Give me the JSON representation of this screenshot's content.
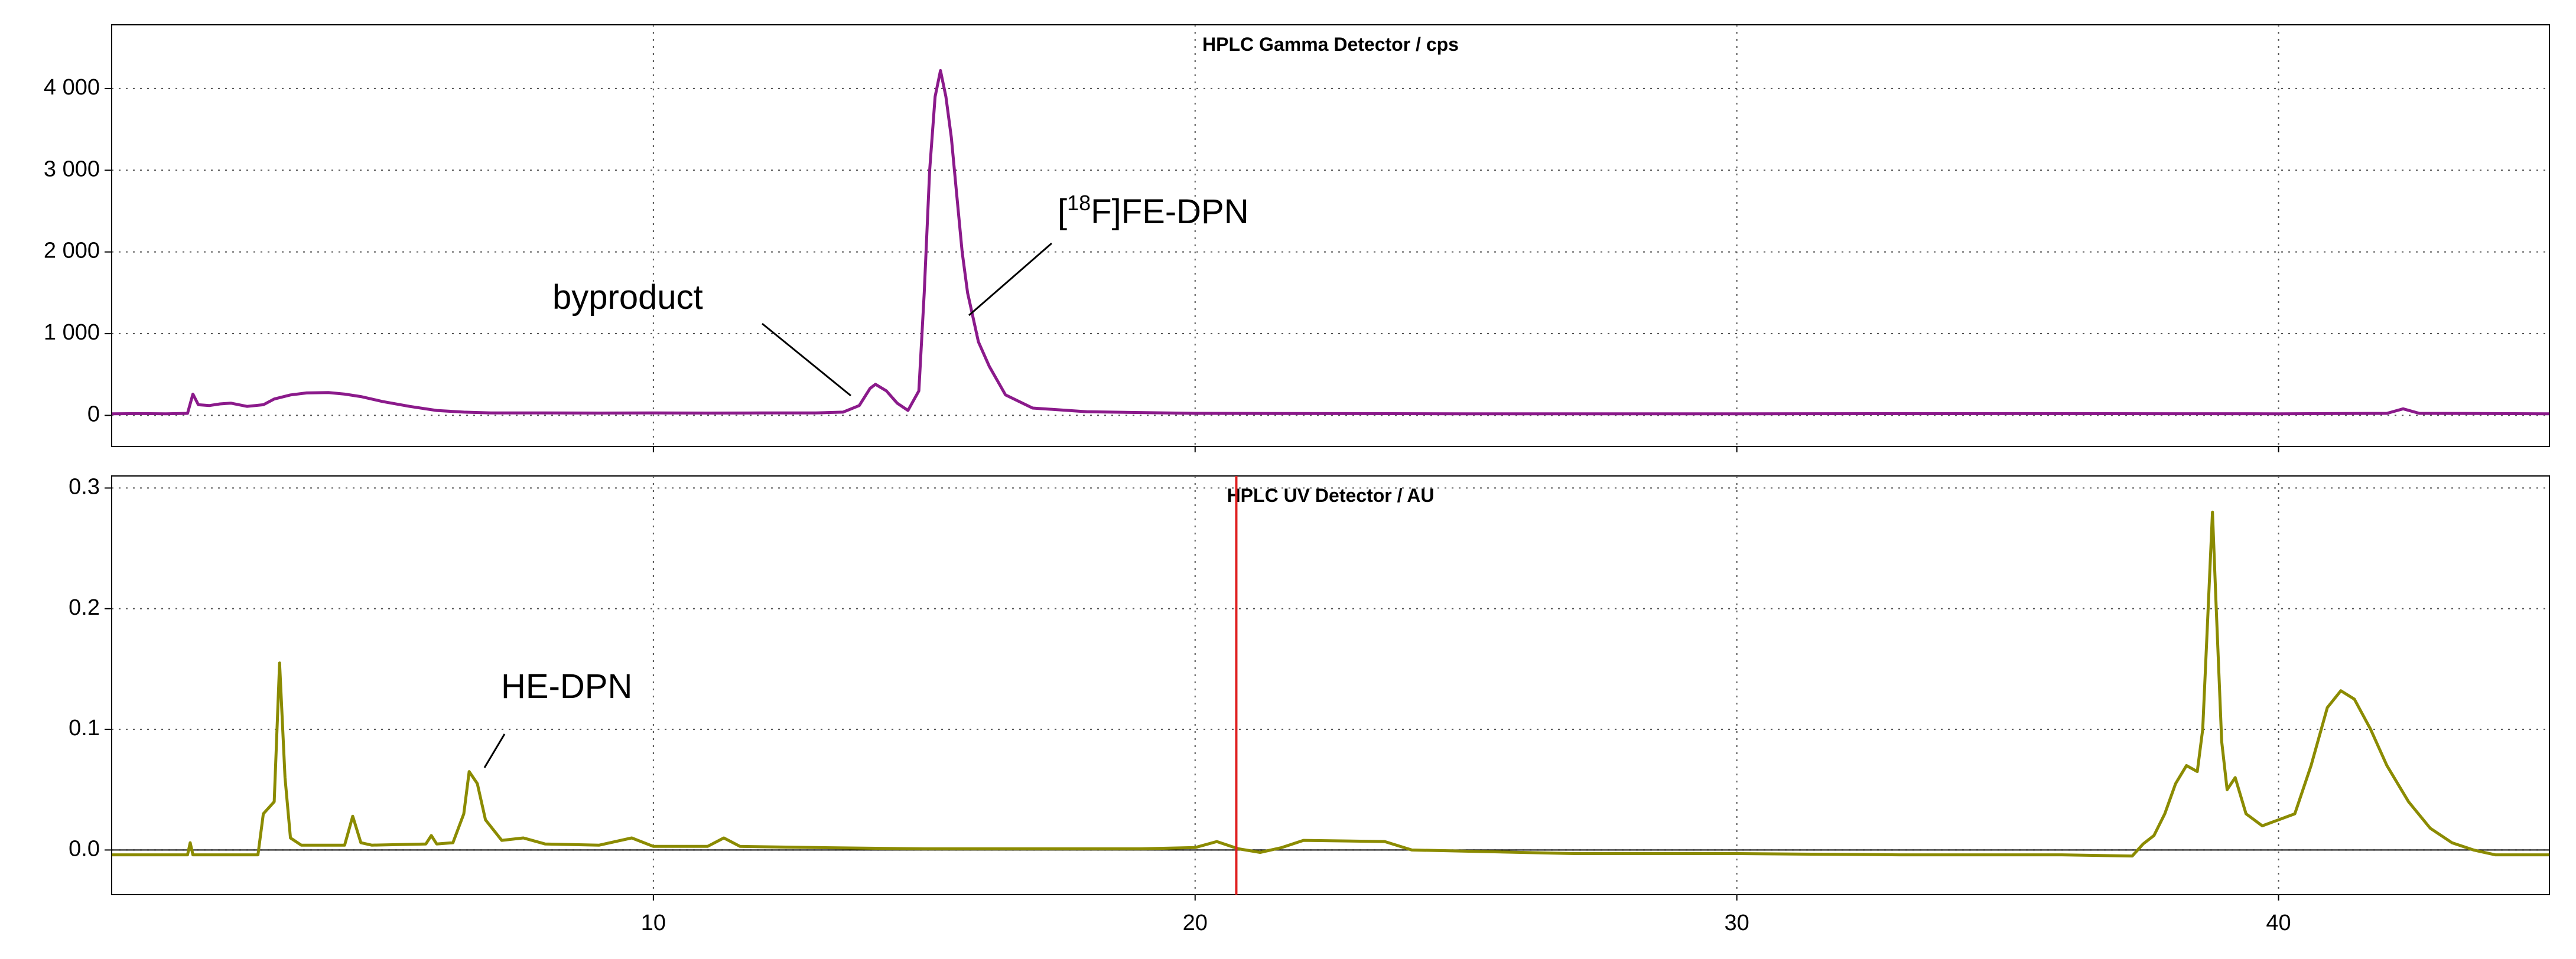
{
  "chart_data": [
    {
      "type": "line",
      "title": "HPLC Gamma Detector / cps",
      "color": "#8b1a8b",
      "xlim": [
        0,
        45
      ],
      "xticks": [
        10,
        20,
        30,
        40
      ],
      "xtick_labels": false,
      "ylim": [
        -380,
        4780
      ],
      "yticks": [
        {
          "value": 0,
          "label": "0"
        },
        {
          "value": 1000,
          "label": "1 000"
        },
        {
          "value": 2000,
          "label": "2 000"
        },
        {
          "value": 3000,
          "label": "3 000"
        },
        {
          "value": 4000,
          "label": "4 000"
        }
      ],
      "grid": true,
      "zero_line": false,
      "x": [
        0,
        0.5,
        1,
        1.4,
        1.5,
        1.6,
        1.8,
        2.0,
        2.2,
        2.5,
        2.8,
        3.0,
        3.3,
        3.6,
        4.0,
        4.3,
        4.6,
        5.0,
        5.5,
        6.0,
        6.5,
        7,
        8,
        9,
        10,
        11,
        12,
        13,
        13.5,
        13.8,
        14.0,
        14.1,
        14.3,
        14.5,
        14.7,
        14.9,
        15.0,
        15.1,
        15.2,
        15.3,
        15.4,
        15.5,
        15.6,
        15.7,
        15.8,
        15.9,
        16.0,
        16.2,
        16.5,
        17,
        18,
        20,
        25,
        30,
        35,
        40,
        42,
        42.3,
        42.6,
        45
      ],
      "values": [
        20,
        22,
        20,
        25,
        260,
        130,
        120,
        140,
        150,
        110,
        130,
        200,
        250,
        275,
        280,
        260,
        230,
        170,
        110,
        60,
        40,
        30,
        30,
        28,
        30,
        28,
        30,
        30,
        40,
        120,
        330,
        380,
        300,
        150,
        60,
        300,
        1500,
        3000,
        3900,
        4220,
        3900,
        3400,
        2700,
        2000,
        1500,
        1200,
        900,
        600,
        250,
        90,
        45,
        25,
        20,
        20,
        22,
        20,
        25,
        80,
        25,
        20
      ],
      "annotations": [
        {
          "text": "byproduct"
        },
        {
          "prefix": "[",
          "sup": "18",
          "text": "F]FE-DPN"
        }
      ]
    },
    {
      "type": "line",
      "title": "HPLC UV Detector / AU",
      "color": "#8b8b00",
      "xlim": [
        0,
        45
      ],
      "xticks": [
        10,
        20,
        30,
        40
      ],
      "xtick_labels": true,
      "ylim": [
        -0.037,
        0.31
      ],
      "yticks": [
        {
          "value": 0,
          "label": "0.0"
        },
        0.1,
        0.2,
        0.3
      ],
      "grid": true,
      "zero_line": true,
      "cursor_x": 20.76,
      "cursor_color": "#e02020",
      "x": [
        0,
        1.4,
        1.45,
        1.5,
        2.7,
        2.8,
        2.9,
        3.0,
        3.1,
        3.2,
        3.3,
        3.5,
        4.3,
        4.45,
        4.6,
        4.8,
        5.8,
        5.9,
        6.0,
        6.3,
        6.5,
        6.6,
        6.75,
        6.9,
        7.2,
        7.6,
        8.0,
        9.0,
        9.6,
        10.0,
        11.0,
        11.3,
        11.6,
        13,
        15,
        17,
        19,
        20.0,
        20.4,
        20.8,
        21.2,
        21.6,
        22.0,
        23.5,
        24.0,
        27,
        30,
        33,
        36,
        37.3,
        37.5,
        37.7,
        37.9,
        38.1,
        38.3,
        38.5,
        38.6,
        38.7,
        38.78,
        38.85,
        38.95,
        39.05,
        39.2,
        39.4,
        39.7,
        40.0,
        40.3,
        40.6,
        40.9,
        41.15,
        41.4,
        41.7,
        42.0,
        42.4,
        42.8,
        43.2,
        43.6,
        44.0,
        45
      ],
      "values": [
        -0.004,
        -0.004,
        0.006,
        -0.004,
        -0.004,
        0.03,
        0.035,
        0.04,
        0.155,
        0.06,
        0.01,
        0.004,
        0.004,
        0.028,
        0.006,
        0.004,
        0.005,
        0.012,
        0.005,
        0.006,
        0.03,
        0.065,
        0.055,
        0.025,
        0.008,
        0.01,
        0.005,
        0.004,
        0.01,
        0.003,
        0.003,
        0.01,
        0.003,
        0.002,
        0.001,
        0.001,
        0.001,
        0.002,
        0.007,
        0.001,
        -0.002,
        0.002,
        0.008,
        0.007,
        0.0,
        -0.003,
        -0.003,
        -0.004,
        -0.004,
        -0.005,
        0.005,
        0.012,
        0.03,
        0.055,
        0.07,
        0.065,
        0.1,
        0.2,
        0.28,
        0.2,
        0.09,
        0.05,
        0.06,
        0.03,
        0.02,
        0.025,
        0.03,
        0.07,
        0.118,
        0.132,
        0.125,
        0.1,
        0.07,
        0.04,
        0.018,
        0.006,
        0.0,
        -0.004,
        -0.004
      ],
      "annotations": [
        {
          "text": "HE-DPN"
        }
      ]
    }
  ]
}
